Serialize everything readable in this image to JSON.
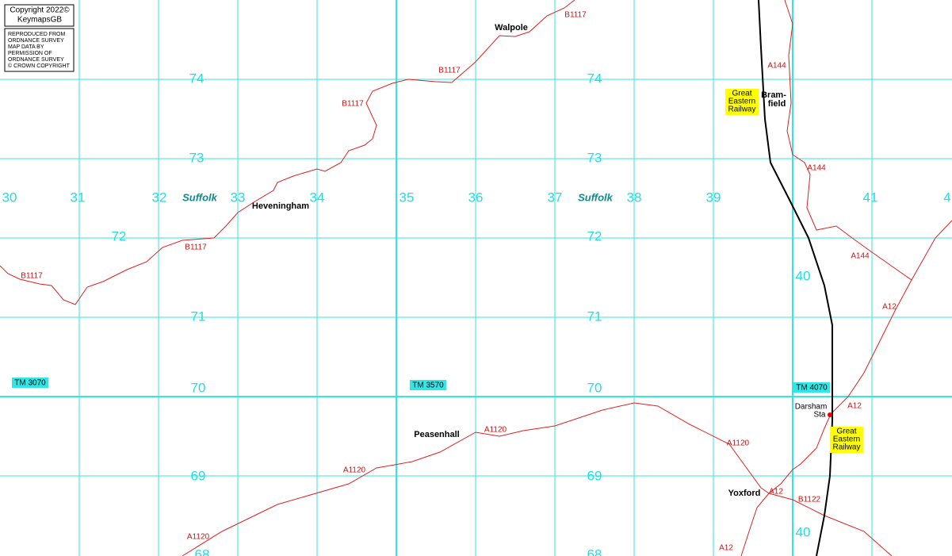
{
  "copyright": [
    "Copyright 2022©",
    "KeymapsGB"
  ],
  "notice": [
    "REPRODUCED FROM",
    "ORDNANCE SURVEY",
    "MAP DATA BY",
    "PERMISSION OF",
    "ORDNANCE SURVEY",
    "© CROWN COPYRIGHT"
  ],
  "eastings": [
    "30",
    "31",
    "32",
    "33",
    "34",
    "35",
    "36",
    "37",
    "38",
    "39",
    "41",
    "4",
    "40",
    "40"
  ],
  "northings_left": [
    "74",
    "73",
    "72",
    "71",
    "70",
    "69",
    "68"
  ],
  "northings_right": [
    "74",
    "73",
    "72",
    "71",
    "70",
    "69",
    "68"
  ],
  "county": [
    "Suffolk",
    "Suffolk"
  ],
  "places": [
    "Walpole",
    "Heveningham",
    "Peasenhall",
    "Yoxford",
    "Bram-",
    "field",
    "Darsham",
    "Sta"
  ],
  "railway_labels": [
    [
      "Great",
      "Eastern",
      "Railway"
    ],
    [
      "Great",
      "Eastern",
      "Railway"
    ]
  ],
  "roads": [
    "B1117",
    "B1117",
    "B1117",
    "B1117",
    "B1117",
    "A144",
    "A144",
    "A144",
    "A12",
    "A12",
    "A12",
    "A12",
    "A1120",
    "A1120",
    "A1120",
    "A1120",
    "B1122"
  ],
  "grid_refs": [
    "TM 3070",
    "TM 3570",
    "TM 4070"
  ]
}
